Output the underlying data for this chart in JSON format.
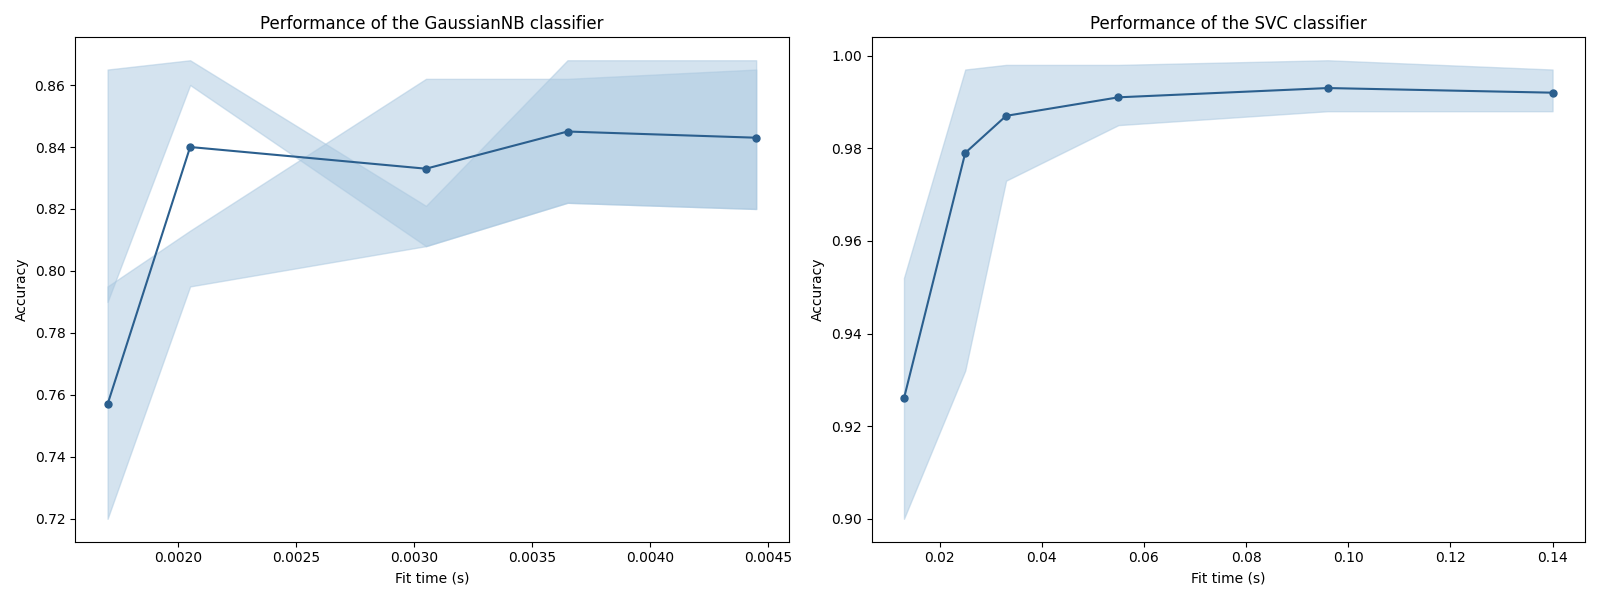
{
  "gnb_title": "Performance of the GaussianNB classifier",
  "svc_title": "Performance of the SVC classifier",
  "xlabel": "Fit time (s)",
  "ylabel": "Accuracy",
  "line_color": "#2b5f8e",
  "band_color": "#aac8e0",
  "band_alpha": 0.5,
  "gnb_fit_times": [
    0.0017,
    0.00205,
    0.00305,
    0.00365,
    0.00445
  ],
  "gnb_scores": [
    0.757,
    0.84,
    0.833,
    0.845,
    0.843
  ],
  "gnb_train_lo": [
    0.79,
    0.862,
    0.808,
    0.862,
    0.862
  ],
  "gnb_train_hi": [
    0.86,
    0.868,
    0.82,
    0.868,
    0.868
  ],
  "gnb_test_lo": [
    0.72,
    0.808,
    0.808,
    0.82,
    0.82
  ],
  "gnb_test_hi": [
    0.795,
    0.813,
    0.862,
    0.862,
    0.865
  ],
  "svc_fit_times": [
    0.013,
    0.025,
    0.033,
    0.055,
    0.096,
    0.14
  ],
  "svc_scores": [
    0.926,
    0.979,
    0.987,
    0.991,
    0.993,
    0.992
  ],
  "svc_scores_lo": [
    0.9,
    0.932,
    0.973,
    0.985,
    0.988,
    0.988
  ],
  "svc_scores_hi": [
    0.952,
    0.997,
    0.998,
    0.998,
    0.999,
    0.997
  ]
}
